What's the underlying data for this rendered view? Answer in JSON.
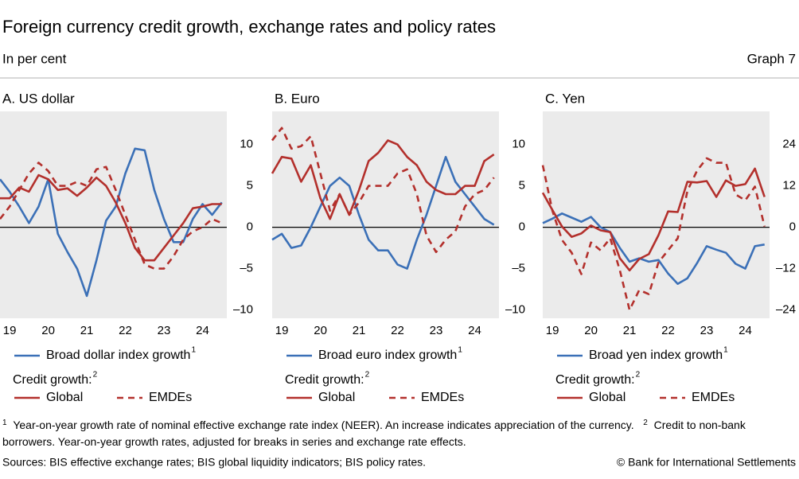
{
  "header": {
    "title": "Foreign currency credit growth, exchange rates and policy rates",
    "subtitle": "In per cent",
    "graph": "Graph 7"
  },
  "chart_data": [
    {
      "type": "line",
      "title": "A. US dollar",
      "x": [
        2019.25,
        2019.5,
        2019.75,
        2020,
        2020.25,
        2020.5,
        2020.75,
        2021,
        2021.25,
        2021.5,
        2021.75,
        2022,
        2022.25,
        2022.5,
        2022.75,
        2023,
        2023.25,
        2023.5,
        2023.75,
        2024,
        2024.25,
        2024.5,
        2024.75,
        2025
      ],
      "xlim": [
        2019.25,
        2025.13
      ],
      "xticks": [
        {
          "value": 2019.5,
          "label": "19"
        },
        {
          "value": 2020.5,
          "label": "20"
        },
        {
          "value": 2021.5,
          "label": "21"
        },
        {
          "value": 2022.5,
          "label": "22"
        },
        {
          "value": 2023.5,
          "label": "23"
        },
        {
          "value": 2024.5,
          "label": "24"
        }
      ],
      "ylim": [
        -11,
        14
      ],
      "yticks": [
        10,
        5,
        0,
        {
          "value": -5,
          "label": "–5"
        },
        {
          "value": -10,
          "label": "–10"
        }
      ],
      "legend_group": "Credit growth:",
      "legend_group_note": "2",
      "series": [
        {
          "name": "Broad dollar index growth",
          "note": "1",
          "color": "#3b70b7",
          "dash": false,
          "values": [
            5.8,
            4.3,
            2.5,
            0.5,
            2.5,
            5.8,
            -0.8,
            -3,
            -5,
            -8.3,
            -4,
            0.8,
            2.5,
            6.5,
            9.5,
            9.3,
            4.5,
            1,
            -1.8,
            -1.8,
            1,
            2.8,
            1.5,
            3
          ]
        },
        {
          "name": "Global",
          "color": "#b3302c",
          "dash": false,
          "values": [
            3.5,
            3.5,
            4.8,
            4.3,
            6.3,
            5.8,
            4.5,
            4.7,
            3.8,
            4.8,
            6,
            5,
            3,
            0.5,
            -2.5,
            -4,
            -4,
            -2.5,
            -1,
            0.5,
            2.3,
            2.5,
            2.8,
            2.8
          ]
        },
        {
          "name": "EMDEs",
          "color": "#b3302c",
          "dash": true,
          "values": [
            1,
            2.5,
            4.5,
            6.5,
            7.8,
            6.8,
            5,
            5,
            5.5,
            5,
            7,
            7.3,
            4.5,
            1.5,
            -1.5,
            -4.5,
            -5,
            -5,
            -3.5,
            -1.5,
            -0.5,
            0,
            1,
            0.5
          ]
        }
      ]
    },
    {
      "type": "line",
      "title": "B. Euro",
      "x": [
        2019.25,
        2019.5,
        2019.75,
        2020,
        2020.25,
        2020.5,
        2020.75,
        2021,
        2021.25,
        2021.5,
        2021.75,
        2022,
        2022.25,
        2022.5,
        2022.75,
        2023,
        2023.25,
        2023.5,
        2023.75,
        2024,
        2024.25,
        2024.5,
        2024.75,
        2025
      ],
      "xlim": [
        2019.25,
        2025.13
      ],
      "xticks": [
        {
          "value": 2019.5,
          "label": "19"
        },
        {
          "value": 2020.5,
          "label": "20"
        },
        {
          "value": 2021.5,
          "label": "21"
        },
        {
          "value": 2022.5,
          "label": "22"
        },
        {
          "value": 2023.5,
          "label": "23"
        },
        {
          "value": 2024.5,
          "label": "24"
        }
      ],
      "ylim": [
        -11,
        14
      ],
      "yticks": [
        10,
        5,
        0,
        {
          "value": -5,
          "label": "–5"
        },
        {
          "value": -10,
          "label": "–10"
        }
      ],
      "legend_group": "Credit growth:",
      "legend_group_note": "2",
      "series": [
        {
          "name": "Broad euro index growth",
          "note": "1",
          "color": "#3b70b7",
          "dash": false,
          "values": [
            -1.5,
            -0.8,
            -2.5,
            -2.2,
            0,
            2.5,
            5,
            6,
            5,
            1.5,
            -1.5,
            -2.8,
            -2.8,
            -4.5,
            -5,
            -1.5,
            1.5,
            5,
            8.5,
            5.5,
            4,
            2.5,
            1,
            0.3
          ]
        },
        {
          "name": "Global",
          "color": "#b3302c",
          "dash": false,
          "values": [
            6.5,
            8.5,
            8.3,
            5.5,
            7.5,
            3.5,
            1,
            4,
            1.5,
            4.5,
            8,
            9,
            10.5,
            10,
            8.5,
            7.5,
            5.5,
            4.5,
            4,
            4,
            5,
            5,
            8,
            8.8
          ]
        },
        {
          "name": "EMDEs",
          "color": "#b3302c",
          "dash": true,
          "values": [
            10.5,
            12,
            9.5,
            9.8,
            11,
            6.5,
            2,
            4,
            1.5,
            3,
            5,
            5,
            5,
            6.5,
            7,
            4,
            -1,
            -3,
            -1.5,
            -0.5,
            2.5,
            4,
            4.5,
            6
          ]
        }
      ]
    },
    {
      "type": "line",
      "title": "C. Yen",
      "x": [
        2019.25,
        2019.5,
        2019.75,
        2020,
        2020.25,
        2020.5,
        2020.75,
        2021,
        2021.25,
        2021.5,
        2021.75,
        2022,
        2022.25,
        2022.5,
        2022.75,
        2023,
        2023.25,
        2023.5,
        2023.75,
        2024,
        2024.25,
        2024.5,
        2024.75,
        2025
      ],
      "xlim": [
        2019.25,
        2025.13
      ],
      "xticks": [
        {
          "value": 2019.5,
          "label": "19"
        },
        {
          "value": 2020.5,
          "label": "20"
        },
        {
          "value": 2021.5,
          "label": "21"
        },
        {
          "value": 2022.5,
          "label": "22"
        },
        {
          "value": 2023.5,
          "label": "23"
        },
        {
          "value": 2024.5,
          "label": "24"
        }
      ],
      "ylim": [
        -26.4,
        33.6
      ],
      "yticks": [
        24,
        12,
        0,
        {
          "value": -12,
          "label": "–12"
        },
        {
          "value": -24,
          "label": "–24"
        }
      ],
      "legend_group": "Credit growth:",
      "legend_group_note": "2",
      "series": [
        {
          "name": "Broad yen index growth",
          "note": "1",
          "color": "#3b70b7",
          "dash": false,
          "values": [
            1.2,
            2.5,
            4,
            2.8,
            1.6,
            3,
            0,
            -1.4,
            -6,
            -10,
            -9,
            -10,
            -9.5,
            -13.4,
            -16.4,
            -14.8,
            -10.4,
            -5.5,
            -6.5,
            -7.4,
            -10.6,
            -12,
            -5.5,
            -5
          ]
        },
        {
          "name": "Global",
          "color": "#b3302c",
          "dash": false,
          "values": [
            10,
            5,
            0.2,
            -2.8,
            -1.8,
            0.5,
            -0.9,
            -1.4,
            -9,
            -12.5,
            -9.2,
            -7.8,
            -2.3,
            4.6,
            4.4,
            13.2,
            13,
            13.4,
            8.8,
            13.6,
            12,
            12.5,
            17,
            8.8
          ]
        },
        {
          "name": "EMDEs",
          "color": "#b3302c",
          "dash": true,
          "values": [
            18,
            4.8,
            -3.7,
            -7.4,
            -13.6,
            -4.4,
            -6.7,
            -3.2,
            -12.5,
            -24,
            -18.2,
            -19.4,
            -10.2,
            -6.7,
            -3.2,
            10.6,
            16.4,
            20,
            18.7,
            18.7,
            9.5,
            7.8,
            11.8,
            0.2
          ]
        }
      ]
    }
  ],
  "footnotes": [
    {
      "mark": "1",
      "text": "Year-on-year growth rate of nominal effective exchange rate index (NEER). An increase indicates appreciation of the currency."
    },
    {
      "mark": "2",
      "text": "Credit to non-bank borrowers. Year-on-year growth rates, adjusted for breaks in series and exchange rate effects."
    }
  ],
  "footer": {
    "sources": "Sources: BIS effective exchange rates; BIS global liquidity indicators; BIS policy rates.",
    "copyright": "© Bank for International Settlements"
  }
}
